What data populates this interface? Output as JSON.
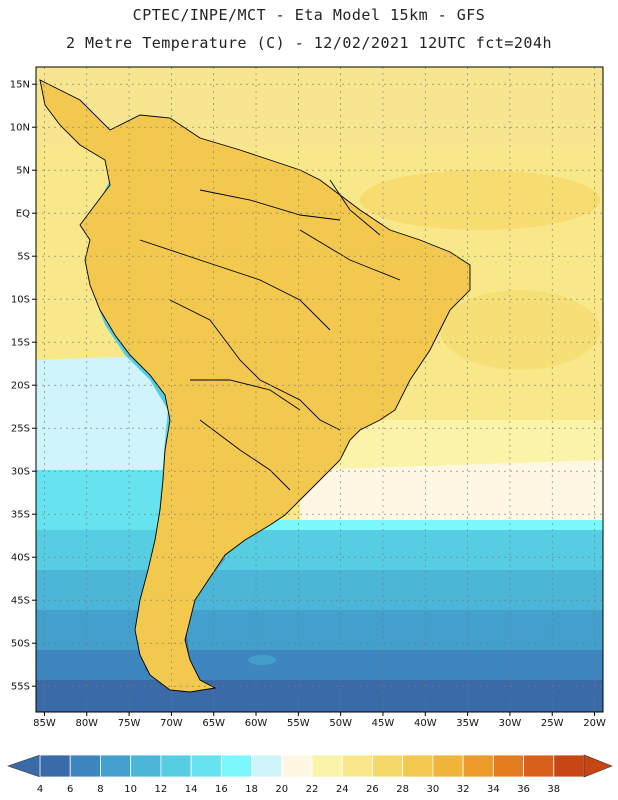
{
  "header": {
    "line1": "CPTEC/INPE/MCT -  Eta Model 15km - GFS",
    "line2": "2 Metre Temperature (C) - 12/02/2021 12UTC fct=204h"
  },
  "map": {
    "lon_range": [
      -86,
      -19
    ],
    "lat_range": [
      -58,
      17
    ],
    "lat_labels": [
      "15N",
      "10N",
      "5N",
      "EQ",
      "5S",
      "10S",
      "15S",
      "20S",
      "25S",
      "30S",
      "35S",
      "40S",
      "45S",
      "50S",
      "55S"
    ],
    "lon_labels": [
      "85W",
      "80W",
      "75W",
      "70W",
      "65W",
      "60W",
      "55W",
      "50W",
      "45W",
      "40W",
      "35W",
      "30W",
      "25W",
      "20W"
    ],
    "grid": true
  },
  "colorbar": {
    "labels": [
      "4",
      "6",
      "8",
      "10",
      "12",
      "14",
      "16",
      "18",
      "20",
      "22",
      "24",
      "26",
      "28",
      "30",
      "32",
      "34",
      "36",
      "38"
    ],
    "colors": [
      "#3a6aa8",
      "#3e86c0",
      "#43a0cc",
      "#4bb6d8",
      "#56cde2",
      "#66e3ee",
      "#7af8fb",
      "#cff4fb",
      "#fdf7e3",
      "#fbf3a8",
      "#f8e88a",
      "#f5d86a",
      "#f2c94e",
      "#efb43a",
      "#ec9a2a",
      "#e57b1f",
      "#d9601a",
      "#c84614"
    ]
  }
}
